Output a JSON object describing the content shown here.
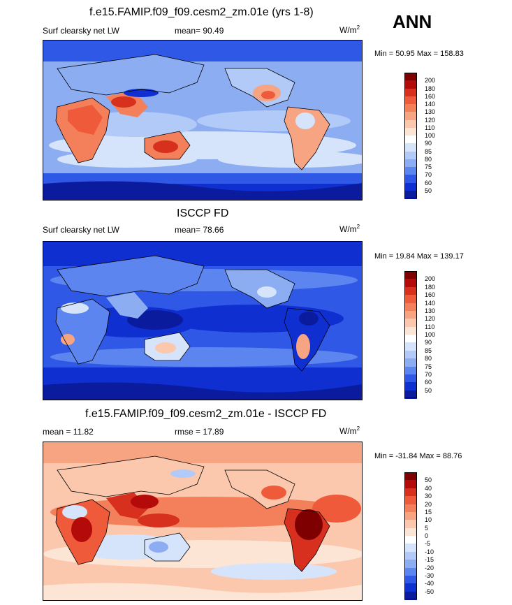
{
  "season": "ANN",
  "panels": [
    {
      "id": "model",
      "title": "f.e15.FAMIP.f09_f09.cesm2_zm.01e (yrs 1-8)",
      "left_label": "Surf clearsky net LW",
      "center_label": "mean=  90.49",
      "units": "W/m",
      "units_sup": "2",
      "minmax": "Min =  50.95 Max = 158.83",
      "colorbar_labels": [
        "200",
        "180",
        "160",
        "140",
        "130",
        "120",
        "110",
        "100",
        "90",
        "85",
        "80",
        "75",
        "70",
        "60",
        "50"
      ],
      "colorbar_colors": [
        "#7f0000",
        "#b40a0a",
        "#d7301f",
        "#ef5a3a",
        "#f4805b",
        "#f7a483",
        "#fbc8ae",
        "#fde5d6",
        "#ffffff",
        "#d6e4fb",
        "#b2caf7",
        "#8dadf3",
        "#5d85ef",
        "#2f58e6",
        "#0f2fd1",
        "#0b1b9e"
      ],
      "chart_data": {
        "type": "heatmap",
        "variable": "Surf clearsky net LW",
        "mean": 90.49,
        "min": 50.95,
        "max": 158.83,
        "units": "W/m2",
        "levels": [
          50,
          60,
          70,
          75,
          80,
          85,
          90,
          100,
          110,
          120,
          130,
          140,
          160,
          180,
          200
        ]
      }
    },
    {
      "id": "obs",
      "title": "ISCCP FD",
      "left_label": "Surf clearsky net LW",
      "center_label": "mean=  78.66",
      "units": "W/m",
      "units_sup": "2",
      "minmax": "Min =  19.84 Max = 139.17",
      "colorbar_labels": [
        "200",
        "180",
        "160",
        "140",
        "130",
        "120",
        "110",
        "100",
        "90",
        "85",
        "80",
        "75",
        "70",
        "60",
        "50"
      ],
      "colorbar_colors": [
        "#7f0000",
        "#b40a0a",
        "#d7301f",
        "#ef5a3a",
        "#f4805b",
        "#f7a483",
        "#fbc8ae",
        "#fde5d6",
        "#ffffff",
        "#d6e4fb",
        "#b2caf7",
        "#8dadf3",
        "#5d85ef",
        "#2f58e6",
        "#0f2fd1",
        "#0b1b9e"
      ],
      "chart_data": {
        "type": "heatmap",
        "variable": "Surf clearsky net LW",
        "mean": 78.66,
        "min": 19.84,
        "max": 139.17,
        "units": "W/m2",
        "levels": [
          50,
          60,
          70,
          75,
          80,
          85,
          90,
          100,
          110,
          120,
          130,
          140,
          160,
          180,
          200
        ]
      }
    },
    {
      "id": "diff",
      "title": "f.e15.FAMIP.f09_f09.cesm2_zm.01e - ISCCP FD",
      "left_label": "mean =  11.82",
      "center_label": "rmse =  17.89",
      "units": "W/m",
      "units_sup": "2",
      "minmax": "Min = -31.84 Max =  88.76",
      "colorbar_labels": [
        "50",
        "40",
        "30",
        "20",
        "15",
        "10",
        "5",
        "0",
        "-5",
        "-10",
        "-15",
        "-20",
        "-30",
        "-40",
        "-50"
      ],
      "colorbar_colors": [
        "#7f0000",
        "#b40a0a",
        "#d7301f",
        "#ef5a3a",
        "#f4805b",
        "#f7a483",
        "#fbc8ae",
        "#fde5d6",
        "#ffffff",
        "#d6e4fb",
        "#b2caf7",
        "#8dadf3",
        "#5d85ef",
        "#2f58e6",
        "#0f2fd1",
        "#0b1b9e"
      ],
      "chart_data": {
        "type": "heatmap",
        "variable": "difference",
        "mean": 11.82,
        "rmse": 17.89,
        "min": -31.84,
        "max": 88.76,
        "units": "W/m2",
        "levels": [
          -50,
          -40,
          -30,
          -20,
          -15,
          -10,
          -5,
          0,
          5,
          10,
          15,
          20,
          30,
          40,
          50
        ]
      }
    }
  ]
}
